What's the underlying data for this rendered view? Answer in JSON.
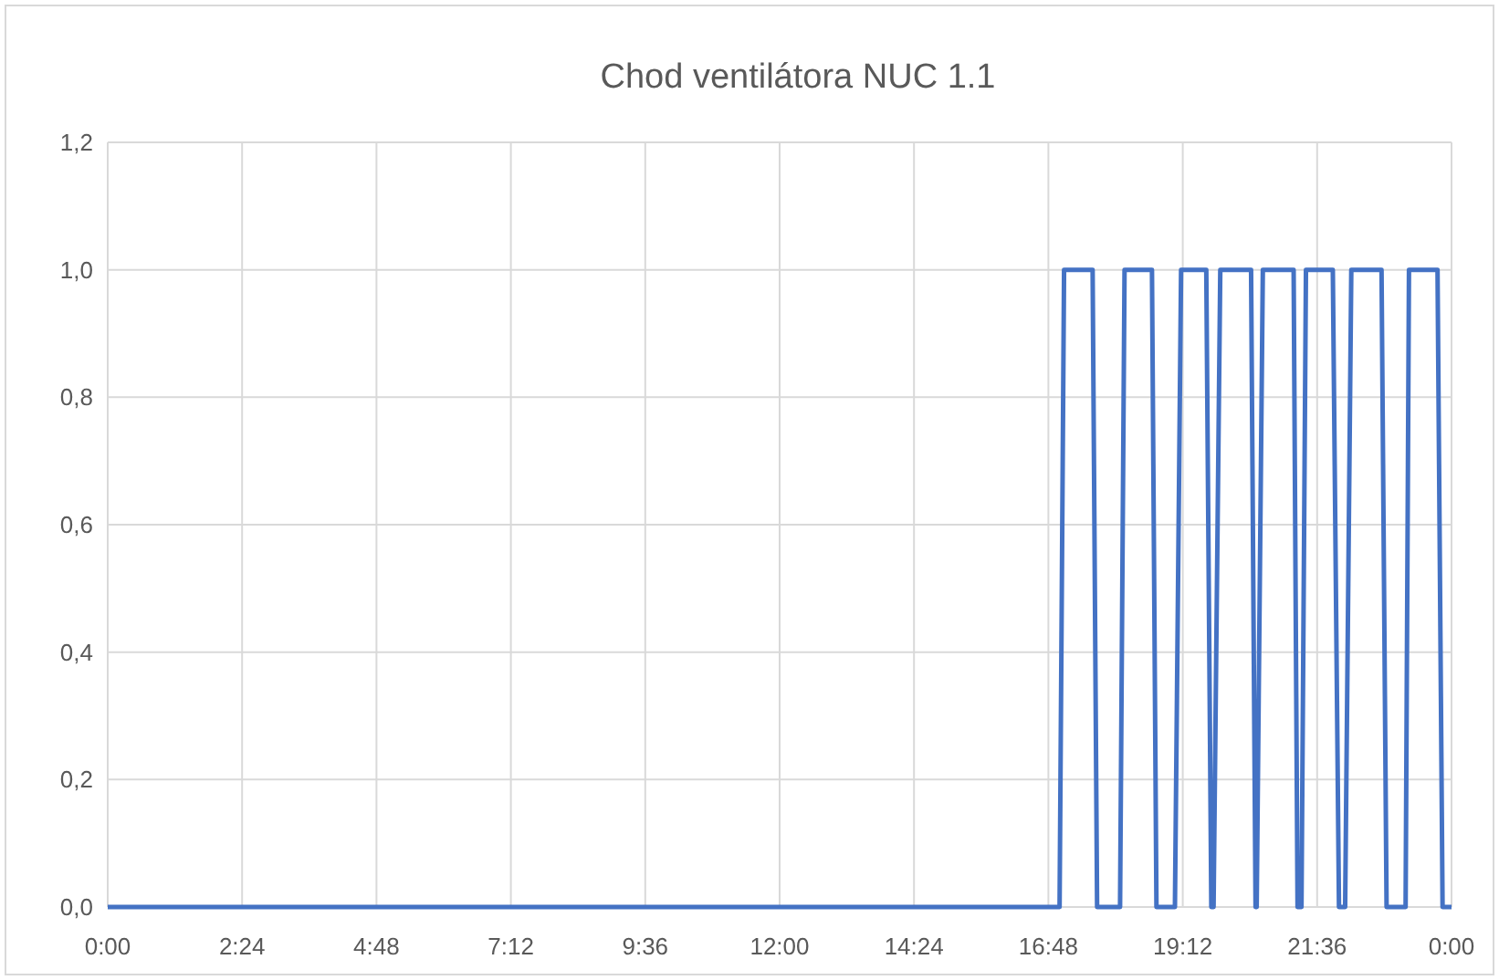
{
  "chart_data": {
    "type": "line",
    "title": "Chod ventilátora NUC 1.1",
    "color": "#4472c4",
    "grid": true,
    "line_style": "solid",
    "marker": "none",
    "x": [
      0,
      17.0,
      17.08,
      17.59,
      17.67,
      18.08,
      18.16,
      18.65,
      18.73,
      19.06,
      19.17,
      19.62,
      19.71,
      19.75,
      19.87,
      20.42,
      20.5,
      20.52,
      20.63,
      21.18,
      21.25,
      21.32,
      21.4,
      21.88,
      21.99,
      22.1,
      22.21,
      22.75,
      22.84,
      23.18,
      23.24,
      23.75,
      23.84,
      24
    ],
    "values": [
      0,
      0,
      1,
      1,
      0,
      0,
      1,
      1,
      0,
      0,
      1,
      1,
      0,
      0,
      1,
      1,
      0,
      0,
      1,
      1,
      0,
      0,
      1,
      1,
      0,
      0,
      1,
      1,
      0,
      0,
      1,
      1,
      0,
      0
    ],
    "xlim": [
      0,
      24
    ],
    "xticks": [
      {
        "value": 0,
        "label": "0:00"
      },
      {
        "value": 2.4,
        "label": "2:24"
      },
      {
        "value": 4.8,
        "label": "4:48"
      },
      {
        "value": 7.2,
        "label": "7:12"
      },
      {
        "value": 9.6,
        "label": "9:36"
      },
      {
        "value": 12,
        "label": "12:00"
      },
      {
        "value": 14.4,
        "label": "14:24"
      },
      {
        "value": 16.8,
        "label": "16:48"
      },
      {
        "value": 19.2,
        "label": "19:12"
      },
      {
        "value": 21.6,
        "label": "21:36"
      },
      {
        "value": 24,
        "label": "0:00"
      }
    ],
    "ylim": [
      0,
      1.2
    ],
    "yticks": [
      {
        "value": 0,
        "label": "0,0"
      },
      {
        "value": 0.2,
        "label": "0,2"
      },
      {
        "value": 0.4,
        "label": "0,4"
      },
      {
        "value": 0.6,
        "label": "0,6"
      },
      {
        "value": 0.8,
        "label": "0,8"
      },
      {
        "value": 1,
        "label": "1,0"
      },
      {
        "value": 1.2,
        "label": "1,2"
      }
    ]
  }
}
